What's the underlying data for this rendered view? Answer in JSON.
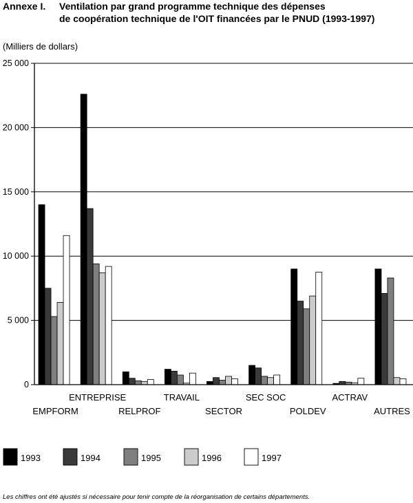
{
  "header": {
    "label": "Annexe I.",
    "title_line1": "Ventilation par grand programme technique des dépenses",
    "title_line2": "de coopération technique de l'OIT financées par le PNUD (1993-1997)"
  },
  "footnote": "Les chiffres ont été ajustés si nécessaire pour tenir compte de la réorganisation de certains départements.",
  "chart_data": {
    "type": "bar",
    "ylabel": "(Milliers de dollars)",
    "ylim": [
      0,
      25000
    ],
    "yticks": [
      {
        "value": 0,
        "label": "0"
      },
      {
        "value": 5000,
        "label": "5 000"
      },
      {
        "value": 10000,
        "label": "10 000"
      },
      {
        "value": 15000,
        "label": "15 000"
      },
      {
        "value": 20000,
        "label": "20 000"
      },
      {
        "value": 25000,
        "label": "25 000"
      }
    ],
    "grid": true,
    "legend_position": "bottom",
    "categories": [
      "EMPFORM",
      "ENTREPRISE",
      "RELPROF",
      "TRAVAIL",
      "SECTOR",
      "SEC SOC",
      "POLDEV",
      "ACTRAV",
      "AUTRES"
    ],
    "series": [
      {
        "name": "1993",
        "color": "#000000",
        "values": [
          14000,
          22600,
          1000,
          1200,
          250,
          1500,
          9000,
          100,
          9000
        ]
      },
      {
        "name": "1994",
        "color": "#3a3a3a",
        "values": [
          7500,
          13700,
          500,
          1050,
          550,
          1300,
          6500,
          250,
          7100
        ]
      },
      {
        "name": "1995",
        "color": "#7f7f7f",
        "values": [
          5300,
          9400,
          300,
          750,
          350,
          650,
          5900,
          200,
          8300
        ]
      },
      {
        "name": "1996",
        "color": "#cccccc",
        "values": [
          6400,
          8700,
          250,
          120,
          650,
          550,
          6900,
          150,
          550
        ]
      },
      {
        "name": "1997",
        "color": "#ffffff",
        "values": [
          11600,
          9200,
          400,
          900,
          450,
          750,
          8750,
          500,
          450
        ]
      }
    ]
  }
}
